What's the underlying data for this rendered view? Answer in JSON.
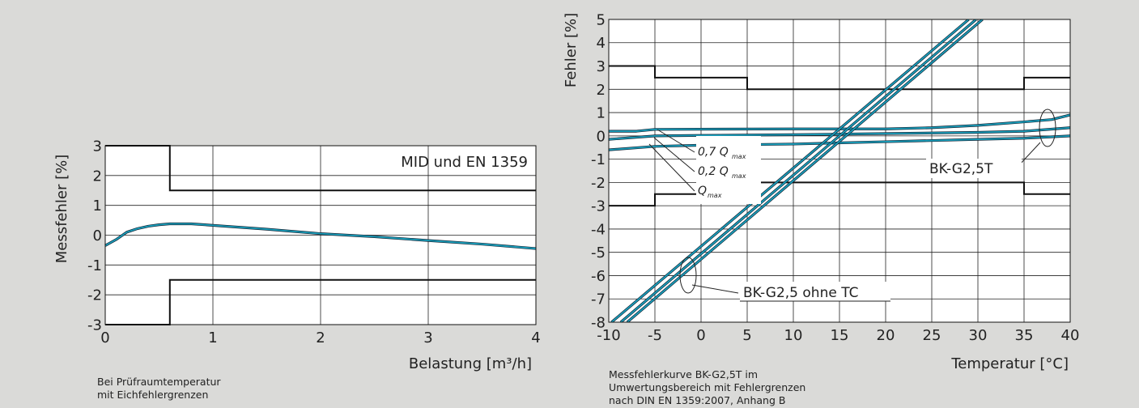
{
  "chart_data": [
    {
      "type": "line",
      "title": "",
      "xlabel": "Belastung [m³/h]",
      "ylabel": "Messfehler [%]",
      "xlim": [
        0,
        4
      ],
      "ylim": [
        -3,
        3
      ],
      "xticks": [
        "0",
        "1",
        "2",
        "3",
        "4"
      ],
      "yticks": [
        "3",
        "2",
        "1",
        "0",
        "-1",
        "-2",
        "-3"
      ],
      "grid": true,
      "annotation": "MID und EN 1359",
      "limit_upper": [
        [
          0,
          3
        ],
        [
          0.6,
          3
        ],
        [
          0.6,
          1.5
        ],
        [
          4,
          1.5
        ]
      ],
      "limit_lower": [
        [
          0,
          -3
        ],
        [
          0.6,
          -3
        ],
        [
          0.6,
          -1.5
        ],
        [
          4,
          -1.5
        ]
      ],
      "series": [
        {
          "name": "",
          "color": "#1aa0bc",
          "points": [
            [
              0,
              -0.35
            ],
            [
              0.1,
              -0.15
            ],
            [
              0.2,
              0.1
            ],
            [
              0.3,
              0.22
            ],
            [
              0.4,
              0.3
            ],
            [
              0.5,
              0.35
            ],
            [
              0.6,
              0.38
            ],
            [
              0.8,
              0.38
            ],
            [
              1.0,
              0.33
            ],
            [
              1.5,
              0.2
            ],
            [
              2.0,
              0.05
            ],
            [
              2.5,
              -0.05
            ],
            [
              3.0,
              -0.18
            ],
            [
              3.5,
              -0.3
            ],
            [
              4.0,
              -0.45
            ]
          ]
        }
      ],
      "caption": [
        "Bei Prüfraumtemperatur",
        "mit Eichfehlergrenzen"
      ]
    },
    {
      "type": "line",
      "title": "",
      "xlabel": "Temperatur [°C]",
      "ylabel": "Fehler [%]",
      "xlim": [
        -10,
        40
      ],
      "ylim": [
        -8,
        5
      ],
      "xticks": [
        "-10",
        "-5",
        "0",
        "5",
        "10",
        "15",
        "20",
        "25",
        "30",
        "35",
        "40"
      ],
      "yticks": [
        "5",
        "4",
        "3",
        "2",
        "1",
        "0",
        "-1",
        "-2",
        "-3",
        "-4",
        "-5",
        "-6",
        "-7",
        "-8"
      ],
      "grid": true,
      "limit_upper": [
        [
          -10,
          3
        ],
        [
          -5,
          3
        ],
        [
          -5,
          2.5
        ],
        [
          5,
          2.5
        ],
        [
          5,
          2
        ],
        [
          35,
          2
        ],
        [
          35,
          2.5
        ],
        [
          40,
          2.5
        ]
      ],
      "limit_lower": [
        [
          -10,
          -3
        ],
        [
          -5,
          -3
        ],
        [
          -5,
          -2.5
        ],
        [
          5,
          -2.5
        ],
        [
          5,
          -2
        ],
        [
          35,
          -2
        ],
        [
          35,
          -2.5
        ],
        [
          40,
          -2.5
        ]
      ],
      "series": [
        {
          "name": "",
          "color": "#1aa0bc",
          "points": [
            [
              -10,
              0.2
            ],
            [
              -7,
              0.2
            ],
            [
              -5,
              0.28
            ],
            [
              10,
              0.3
            ],
            [
              20,
              0.3
            ],
            [
              25,
              0.35
            ],
            [
              30,
              0.45
            ],
            [
              35,
              0.6
            ],
            [
              38,
              0.7
            ],
            [
              40,
              0.9
            ]
          ]
        },
        {
          "name": "",
          "color": "#1aa0bc",
          "points": [
            [
              -10,
              -0.15
            ],
            [
              -5,
              0.0
            ],
            [
              0,
              0.02
            ],
            [
              10,
              0.05
            ],
            [
              20,
              0.1
            ],
            [
              30,
              0.15
            ],
            [
              35,
              0.2
            ],
            [
              40,
              0.35
            ]
          ]
        },
        {
          "name": "",
          "color": "#1aa0bc",
          "points": [
            [
              -10,
              -0.6
            ],
            [
              -5,
              -0.45
            ],
            [
              0,
              -0.4
            ],
            [
              10,
              -0.35
            ],
            [
              20,
              -0.25
            ],
            [
              30,
              -0.15
            ],
            [
              35,
              -0.1
            ],
            [
              40,
              0.0
            ]
          ]
        },
        {
          "name": "",
          "color": "#1aa0bc",
          "points": [
            [
              -8.7,
              -8
            ],
            [
              29.8,
              5
            ]
          ]
        },
        {
          "name": "",
          "color": "#1aa0bc",
          "points": [
            [
              -9.7,
              -8
            ],
            [
              29.0,
              5
            ]
          ]
        },
        {
          "name": "",
          "color": "#1aa0bc",
          "points": [
            [
              -8.0,
              -8
            ],
            [
              30.5,
              5
            ]
          ]
        }
      ],
      "labels": {
        "q07": "0,7 Q",
        "q02": "0,2 Q",
        "qmax": "Q",
        "sub": "max",
        "bk_t": "BK-G2,5T",
        "bk_ohne": "BK-G2,5 ohne TC"
      },
      "caption": [
        "Messfehlerkurve BK-G2,5T im",
        "Umwertungsbereich mit Fehlergrenzen",
        "nach DIN EN 1359:2007, Anhang B"
      ]
    }
  ]
}
